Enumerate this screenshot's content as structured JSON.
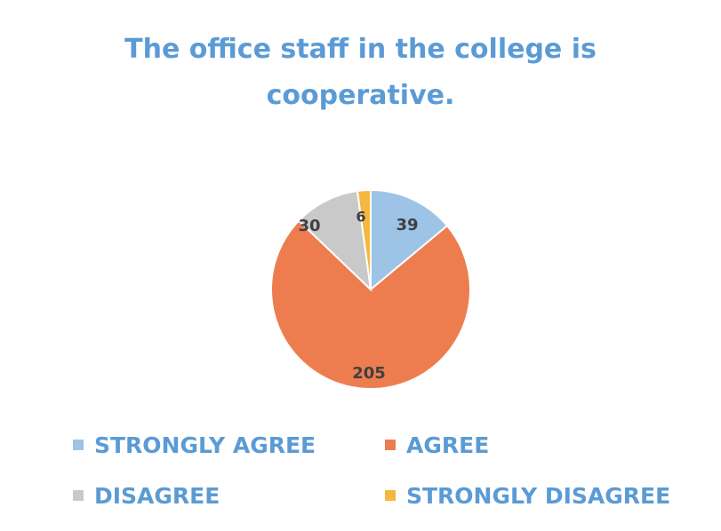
{
  "colors": {
    "title": "#5b9bd5",
    "strongly_agree": "#9dc3e6",
    "agree": "#ed7d4f",
    "disagree": "#c9c9c9",
    "strongly_disagree": "#f4b742",
    "label": "#404040",
    "legend_text": "#5b9bd5"
  },
  "chart_data": {
    "type": "pie",
    "title": "The office staff in the college is\ncooperative.",
    "categories": [
      "STRONGLY AGREE",
      "AGREE",
      "DISAGREE",
      "STRONGLY DISAGREE"
    ],
    "values": [
      39,
      205,
      30,
      6
    ],
    "data_labels": [
      "39",
      "205",
      "30",
      "6"
    ],
    "legend_position": "bottom",
    "start_angle_degrees": 0,
    "direction": "clockwise"
  }
}
